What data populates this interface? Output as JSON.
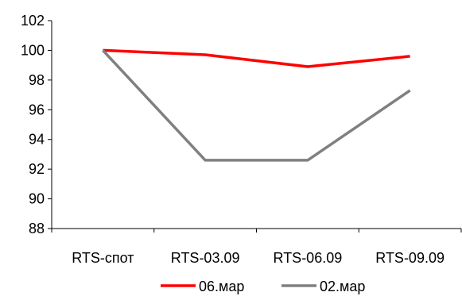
{
  "chart_data": {
    "type": "line",
    "categories": [
      "RTS-спот",
      "RTS-03.09",
      "RTS-06.09",
      "RTS-09.09"
    ],
    "series": [
      {
        "name": "06.мар",
        "values": [
          100,
          99.7,
          98.9,
          99.6
        ],
        "color": "#ff0000"
      },
      {
        "name": "02.мар",
        "values": [
          100,
          92.6,
          92.6,
          97.3
        ],
        "color": "#808080"
      }
    ],
    "ylim": [
      88,
      102
    ],
    "yticks": [
      88,
      90,
      92,
      94,
      96,
      98,
      100,
      102
    ],
    "grid": false,
    "legend_position": "bottom",
    "title": "",
    "xlabel": "",
    "ylabel": ""
  }
}
